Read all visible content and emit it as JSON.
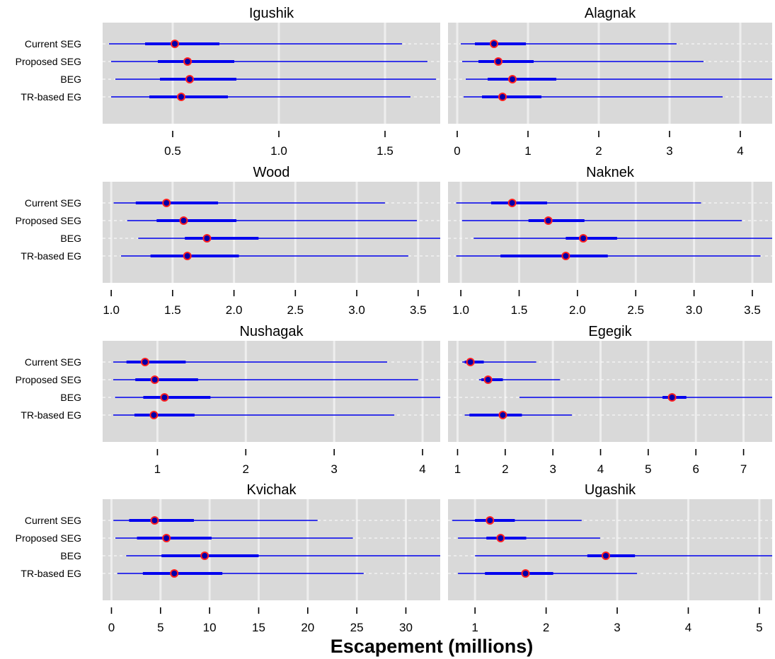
{
  "figure": {
    "xlabel": "Escapement (millions)"
  },
  "colors": {
    "panel_bg": "#d9d9d9",
    "grid_major": "#eeeeee",
    "interval": "#0000ee",
    "point_fill": "#0000aa",
    "point_stroke": "#ff2020"
  },
  "chart_data": [
    {
      "type": "interval",
      "title": "Igushik",
      "categories": [
        "Current SEG",
        "Proposed SEG",
        "BEG",
        "TR-based EG"
      ],
      "xlim": [
        0.17,
        1.76
      ],
      "ticks": [
        0.5,
        1.0,
        1.5
      ],
      "tick_labels": [
        "0.5",
        "1.0",
        "1.5"
      ],
      "points": [
        {
          "label": "Current SEG",
          "median": 0.51,
          "inner": [
            0.37,
            0.72
          ],
          "outer": [
            0.2,
            1.58
          ]
        },
        {
          "label": "Proposed SEG",
          "median": 0.57,
          "inner": [
            0.43,
            0.79
          ],
          "outer": [
            0.21,
            1.7
          ]
        },
        {
          "label": "BEG",
          "median": 0.58,
          "inner": [
            0.44,
            0.8
          ],
          "outer": [
            0.23,
            1.74
          ]
        },
        {
          "label": "TR-based EG",
          "median": 0.54,
          "inner": [
            0.39,
            0.76
          ],
          "outer": [
            0.21,
            1.62
          ]
        }
      ]
    },
    {
      "type": "interval",
      "title": "Alagnak",
      "categories": [
        "Current SEG",
        "Proposed SEG",
        "BEG",
        "TR-based EG"
      ],
      "xlim": [
        -0.13,
        4.45
      ],
      "ticks": [
        0,
        1,
        2,
        3,
        4
      ],
      "tick_labels": [
        "0",
        "1",
        "2",
        "3",
        "4"
      ],
      "points": [
        {
          "label": "Current SEG",
          "median": 0.52,
          "inner": [
            0.25,
            0.97
          ],
          "outer": [
            0.05,
            3.1
          ]
        },
        {
          "label": "Proposed SEG",
          "median": 0.58,
          "inner": [
            0.3,
            1.08
          ],
          "outer": [
            0.07,
            3.48
          ]
        },
        {
          "label": "BEG",
          "median": 0.78,
          "inner": [
            0.43,
            1.4
          ],
          "outer": [
            0.12,
            4.45
          ]
        },
        {
          "label": "TR-based EG",
          "median": 0.64,
          "inner": [
            0.35,
            1.19
          ],
          "outer": [
            0.09,
            3.75
          ]
        }
      ]
    },
    {
      "type": "interval",
      "title": "Wood",
      "categories": [
        "Current SEG",
        "Proposed SEG",
        "BEG",
        "TR-based EG"
      ],
      "xlim": [
        0.93,
        3.68
      ],
      "ticks": [
        1.0,
        1.5,
        2.0,
        2.5,
        3.0,
        3.5
      ],
      "tick_labels": [
        "1.0",
        "1.5",
        "2.0",
        "2.5",
        "3.0",
        "3.5"
      ],
      "points": [
        {
          "label": "Current SEG",
          "median": 1.45,
          "inner": [
            1.2,
            1.87
          ],
          "outer": [
            1.02,
            3.23
          ]
        },
        {
          "label": "Proposed SEG",
          "median": 1.59,
          "inner": [
            1.37,
            2.02
          ],
          "outer": [
            1.13,
            3.49
          ]
        },
        {
          "label": "BEG",
          "median": 1.78,
          "inner": [
            1.6,
            2.2
          ],
          "outer": [
            1.22,
            3.68
          ]
        },
        {
          "label": "TR-based EG",
          "median": 1.62,
          "inner": [
            1.32,
            2.04
          ],
          "outer": [
            1.08,
            3.42
          ]
        }
      ]
    },
    {
      "type": "interval",
      "title": "Naknek",
      "categories": [
        "Current SEG",
        "Proposed SEG",
        "BEG",
        "TR-based EG"
      ],
      "xlim": [
        0.89,
        3.67
      ],
      "ticks": [
        1.0,
        1.5,
        2.0,
        2.5,
        3.0,
        3.5
      ],
      "tick_labels": [
        "1.0",
        "1.5",
        "2.0",
        "2.5",
        "3.0",
        "3.5"
      ],
      "points": [
        {
          "label": "Current SEG",
          "median": 1.44,
          "inner": [
            1.26,
            1.74
          ],
          "outer": [
            0.96,
            3.06
          ]
        },
        {
          "label": "Proposed SEG",
          "median": 1.75,
          "inner": [
            1.58,
            2.06
          ],
          "outer": [
            1.01,
            3.41
          ]
        },
        {
          "label": "BEG",
          "median": 2.05,
          "inner": [
            1.9,
            2.34
          ],
          "outer": [
            1.11,
            3.67
          ]
        },
        {
          "label": "TR-based EG",
          "median": 1.9,
          "inner": [
            1.34,
            2.26
          ],
          "outer": [
            0.96,
            3.57
          ]
        }
      ]
    },
    {
      "type": "interval",
      "title": "Nushagak",
      "categories": [
        "Current SEG",
        "Proposed SEG",
        "BEG",
        "TR-based EG"
      ],
      "xlim": [
        0.38,
        4.2
      ],
      "ticks": [
        1,
        2,
        3,
        4
      ],
      "tick_labels": [
        "1",
        "2",
        "3",
        "4"
      ],
      "points": [
        {
          "label": "Current SEG",
          "median": 0.86,
          "inner": [
            0.65,
            1.32
          ],
          "outer": [
            0.5,
            3.6
          ]
        },
        {
          "label": "Proposed SEG",
          "median": 0.97,
          "inner": [
            0.75,
            1.46
          ],
          "outer": [
            0.5,
            3.95
          ]
        },
        {
          "label": "BEG",
          "median": 1.08,
          "inner": [
            0.84,
            1.6
          ],
          "outer": [
            0.52,
            4.2
          ]
        },
        {
          "label": "TR-based EG",
          "median": 0.96,
          "inner": [
            0.74,
            1.42
          ],
          "outer": [
            0.5,
            3.68
          ]
        }
      ]
    },
    {
      "type": "interval",
      "title": "Egegik",
      "categories": [
        "Current SEG",
        "Proposed SEG",
        "BEG",
        "TR-based EG"
      ],
      "xlim": [
        0.8,
        7.6
      ],
      "ticks": [
        1,
        2,
        3,
        4,
        5,
        6,
        7
      ],
      "tick_labels": [
        "1",
        "2",
        "3",
        "4",
        "5",
        "6",
        "7"
      ],
      "points": [
        {
          "label": "Current SEG",
          "median": 1.27,
          "inner": [
            1.15,
            1.55
          ],
          "outer": [
            1.1,
            2.65
          ]
        },
        {
          "label": "Proposed SEG",
          "median": 1.64,
          "inner": [
            1.5,
            1.95
          ],
          "outer": [
            1.45,
            3.15
          ]
        },
        {
          "label": "BEG",
          "median": 5.5,
          "inner": [
            5.3,
            5.8
          ],
          "outer": [
            2.3,
            7.6
          ]
        },
        {
          "label": "TR-based EG",
          "median": 1.95,
          "inner": [
            1.25,
            2.35
          ],
          "outer": [
            1.15,
            3.4
          ]
        }
      ]
    },
    {
      "type": "interval",
      "title": "Kvichak",
      "categories": [
        "Current SEG",
        "Proposed SEG",
        "BEG",
        "TR-based EG"
      ],
      "xlim": [
        -0.9,
        33.5
      ],
      "ticks": [
        0,
        5,
        10,
        15,
        20,
        25,
        30
      ],
      "tick_labels": [
        "0",
        "5",
        "10",
        "15",
        "20",
        "25",
        "30"
      ],
      "points": [
        {
          "label": "Current SEG",
          "median": 4.4,
          "inner": [
            1.8,
            8.4
          ],
          "outer": [
            0.2,
            21.0
          ]
        },
        {
          "label": "Proposed SEG",
          "median": 5.6,
          "inner": [
            2.6,
            10.2
          ],
          "outer": [
            0.4,
            24.6
          ]
        },
        {
          "label": "BEG",
          "median": 9.5,
          "inner": [
            5.1,
            15.0
          ],
          "outer": [
            1.5,
            33.5
          ]
        },
        {
          "label": "TR-based EG",
          "median": 6.4,
          "inner": [
            3.2,
            11.3
          ],
          "outer": [
            0.6,
            25.7
          ]
        }
      ]
    },
    {
      "type": "interval",
      "title": "Ugashik",
      "categories": [
        "Current SEG",
        "Proposed SEG",
        "BEG",
        "TR-based EG"
      ],
      "xlim": [
        0.62,
        5.18
      ],
      "ticks": [
        1,
        2,
        3,
        4,
        5
      ],
      "tick_labels": [
        "1",
        "2",
        "3",
        "4",
        "5"
      ],
      "points": [
        {
          "label": "Current SEG",
          "median": 1.21,
          "inner": [
            1.0,
            1.56
          ],
          "outer": [
            0.68,
            2.5
          ]
        },
        {
          "label": "Proposed SEG",
          "median": 1.36,
          "inner": [
            1.16,
            1.72
          ],
          "outer": [
            0.76,
            2.76
          ]
        },
        {
          "label": "BEG",
          "median": 2.84,
          "inner": [
            2.58,
            3.25
          ],
          "outer": [
            1.0,
            5.18
          ]
        },
        {
          "label": "TR-based EG",
          "median": 1.71,
          "inner": [
            1.14,
            2.1
          ],
          "outer": [
            0.76,
            3.28
          ]
        }
      ]
    }
  ]
}
